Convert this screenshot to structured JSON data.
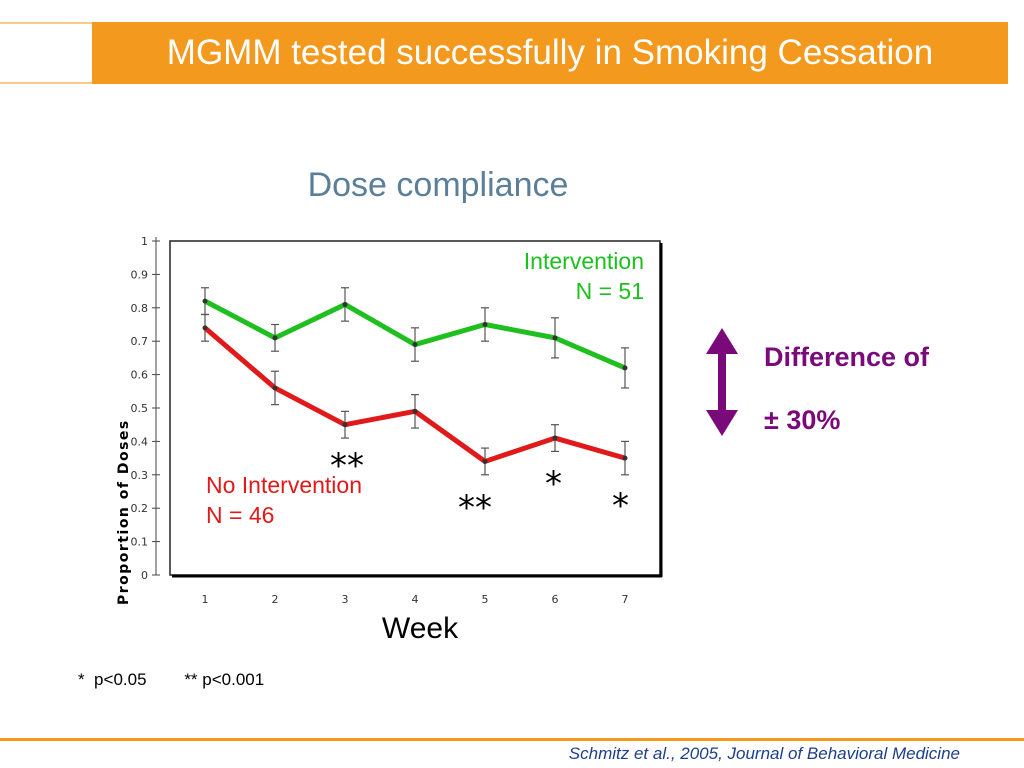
{
  "slide": {
    "title": "MGMM tested successfully in Smoking Cessation",
    "subtitle": "Dose compliance",
    "x_caption": "Week",
    "footnote": "*  p<0.05        ** p<0.001",
    "citation": "Schmitz et al., 2005, Journal of Behavioral Medicine",
    "difference_line1": "Difference of",
    "difference_line2": "± 30%",
    "colors": {
      "title_bar": "#f39a1e",
      "intervention": "#1fbf1f",
      "no_intervention": "#e01a1a",
      "difference": "#7a0a7a",
      "citation": "#1d3f8a"
    }
  },
  "labels": {
    "intervention_name": "Intervention",
    "intervention_n": "N = 51",
    "nointervention_name": "No Intervention",
    "nointervention_n": "N = 46"
  },
  "significance": [
    {
      "week": 3,
      "mark": "**"
    },
    {
      "week": 5,
      "mark": "**"
    },
    {
      "week": 6,
      "mark": "*"
    },
    {
      "week": 7,
      "mark": "*"
    }
  ],
  "chart_data": {
    "type": "line",
    "ylabel": "Proportion of Doses",
    "xlabel": "Week",
    "x": [
      1,
      2,
      3,
      4,
      5,
      6,
      7
    ],
    "ylim": [
      0,
      1
    ],
    "yticks": [
      "0",
      "0.1",
      "0.2",
      "0.3",
      "0.4",
      "0.5",
      "0.6",
      "0.7",
      "0.8",
      "0.9",
      "1"
    ],
    "series": [
      {
        "name": "Intervention",
        "color": "#1fbf1f",
        "values": [
          0.82,
          0.71,
          0.81,
          0.69,
          0.75,
          0.71,
          0.62
        ],
        "error": [
          0.04,
          0.04,
          0.05,
          0.05,
          0.05,
          0.06,
          0.06
        ]
      },
      {
        "name": "No Intervention",
        "color": "#e01a1a",
        "values": [
          0.74,
          0.56,
          0.45,
          0.49,
          0.34,
          0.41,
          0.35
        ],
        "error": [
          0.04,
          0.05,
          0.04,
          0.05,
          0.04,
          0.04,
          0.05
        ]
      }
    ]
  }
}
